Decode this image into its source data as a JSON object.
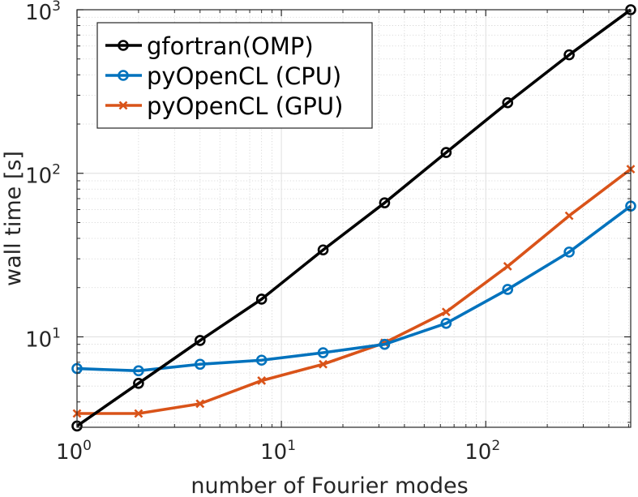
{
  "chart_data": {
    "type": "line",
    "xlabel": "number of Fourier modes",
    "ylabel": "wall time [s]",
    "xscale": "log",
    "yscale": "log",
    "xlim": [
      1,
      512
    ],
    "ylim": [
      2.8,
      1000
    ],
    "grid": true,
    "minor_grid": true,
    "legend_position": "top-left",
    "x_ticks": [
      {
        "value": 1,
        "base": "10",
        "exp": "0"
      },
      {
        "value": 10,
        "base": "10",
        "exp": "1"
      },
      {
        "value": 100,
        "base": "10",
        "exp": "2"
      }
    ],
    "y_ticks": [
      {
        "value": 10,
        "base": "10",
        "exp": "1"
      },
      {
        "value": 100,
        "base": "10",
        "exp": "2"
      },
      {
        "value": 1000,
        "base": "10",
        "exp": "3"
      }
    ],
    "x": [
      1,
      2,
      4,
      8,
      16,
      32,
      64,
      128,
      256,
      512
    ],
    "series": [
      {
        "name": "gfortran(OMP)",
        "color": "#000000",
        "marker": "circle",
        "values": [
          2.85,
          5.2,
          9.5,
          17,
          34,
          66,
          134,
          270,
          530,
          1000
        ]
      },
      {
        "name": "pyOpenCL (CPU)",
        "color": "#0072BD",
        "marker": "circle",
        "values": [
          6.4,
          6.2,
          6.8,
          7.2,
          8.0,
          9.0,
          12.1,
          19.5,
          33,
          63
        ]
      },
      {
        "name": "pyOpenCL (GPU)",
        "color": "#D95319",
        "marker": "x",
        "values": [
          3.4,
          3.4,
          3.9,
          5.4,
          6.8,
          9.2,
          14.2,
          27,
          55,
          106
        ]
      }
    ]
  }
}
